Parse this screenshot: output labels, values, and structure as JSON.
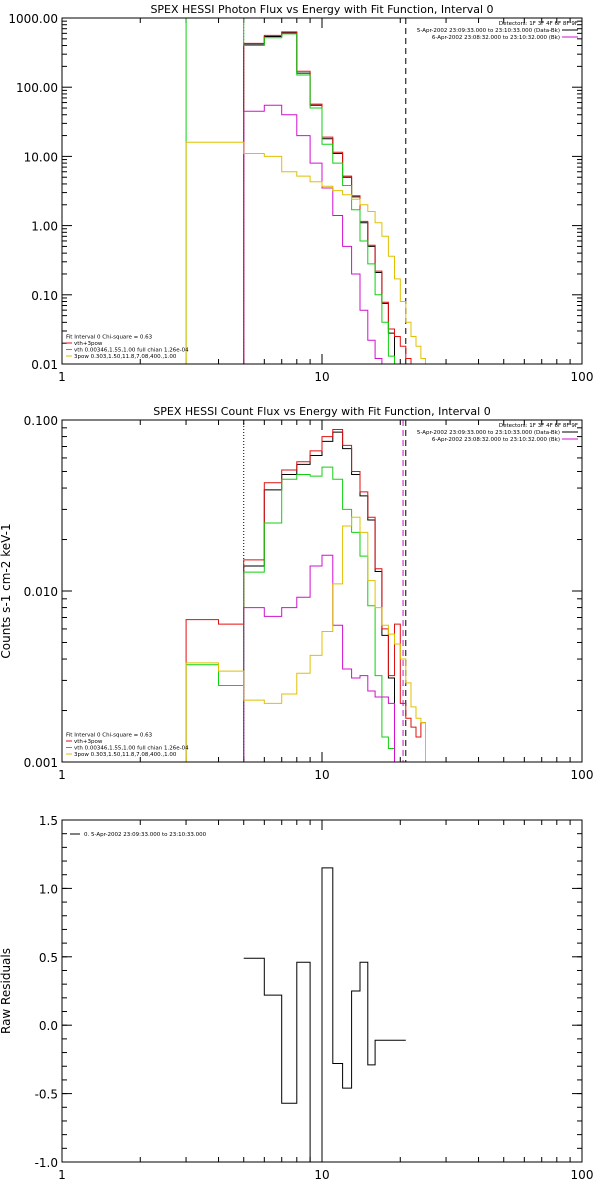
{
  "colors": {
    "background": "#ffffff",
    "axes": "#000000",
    "black": "#000000",
    "red": "#e01010",
    "green": "#10d010",
    "magenta": "#d010d0",
    "yellow": "#e0c000"
  },
  "chart_data": [
    {
      "type": "line",
      "step": true,
      "title": "SPEX HESSI Photon Flux vs Energy with Fit Function, Interval 0",
      "xlabel": "",
      "ylabel": "",
      "xscale": "log",
      "yscale": "log",
      "xlim": [
        1,
        100
      ],
      "ylim": [
        0.01,
        1000
      ],
      "x_ticks": [
        "1",
        "10",
        "100"
      ],
      "y_ticks": [
        "1000.00",
        "100.00",
        "10.00",
        "1.00",
        "0.10",
        "0.01"
      ],
      "edges": [
        3,
        4,
        5,
        6,
        7,
        8,
        9,
        10,
        11,
        12,
        13,
        14,
        15,
        16,
        17,
        18,
        19,
        20,
        21,
        22,
        23,
        24,
        25,
        26
      ],
      "vlines": [
        {
          "x": 5,
          "color": "magenta",
          "style": "dotted"
        },
        {
          "x": 21,
          "color": "black",
          "style": "dashed"
        }
      ],
      "legend_top_right": [
        {
          "text": "Detectors: 1F 3F 4F 6F 8F 9F",
          "color": "black"
        },
        {
          "text": "5-Apr-2002 23:09:33.000 to 23:10:33.000 (Data-Bk)",
          "color": "black"
        },
        {
          "text": "6-Apr-2002 23:08:32.000 to 23:10:32.000 (Bk)",
          "color": "magenta"
        }
      ],
      "legend_bottom_left": [
        {
          "text": "Fit Interval 0   Chi-square = 0.63",
          "color": "black"
        },
        {
          "text": "vth+3pow",
          "color": "red"
        },
        {
          "text": "vth 0.00346,1.55,1.00  full chian 1.26e-04",
          "color": "green"
        },
        {
          "text": "3pow 0.303,1.50,11.8,7.08,400.,1.00",
          "color": "yellow"
        }
      ],
      "series": [
        {
          "color": "black",
          "values": [
            null,
            null,
            420,
            540,
            610,
            160,
            55,
            18,
            11,
            5,
            2.6,
            1.1,
            0.5,
            0.21,
            0.075,
            0.028,
            null,
            null,
            null,
            null,
            null,
            null,
            null
          ]
        },
        {
          "color": "red",
          "values": [
            null,
            null,
            430,
            560,
            630,
            170,
            57,
            19,
            11.5,
            5.2,
            2.7,
            1.15,
            0.52,
            0.22,
            0.078,
            0.032,
            0.025,
            0.018,
            0.012,
            null,
            null,
            null,
            null
          ]
        },
        {
          "color": "green",
          "values": [
            1000,
            1000,
            400,
            520,
            590,
            150,
            50,
            15,
            8,
            3.8,
            1.7,
            0.6,
            0.28,
            0.1,
            0.04,
            0.013,
            0.008,
            null,
            null,
            null,
            null,
            null,
            null
          ]
        },
        {
          "color": "magenta",
          "values": [
            null,
            null,
            45,
            55,
            40,
            20,
            8,
            3.5,
            1.4,
            0.5,
            0.2,
            0.06,
            0.022,
            0.012,
            0.008,
            0.005,
            null,
            null,
            null,
            null,
            null,
            null,
            null
          ]
        },
        {
          "color": "yellow",
          "values": [
            16,
            16,
            11,
            10,
            6,
            5.2,
            4.3,
            3.7,
            3.2,
            2.8,
            2.4,
            2.0,
            1.6,
            1.1,
            0.7,
            0.36,
            0.17,
            0.08,
            0.04,
            0.025,
            0.018,
            0.012,
            0.007
          ]
        }
      ]
    },
    {
      "type": "line",
      "step": true,
      "title": "SPEX HESSI Count Flux vs Energy with Fit Function, Interval 0",
      "xlabel": "",
      "ylabel": "Counts s-1 cm-2 keV-1",
      "xscale": "log",
      "yscale": "log",
      "xlim": [
        1,
        100
      ],
      "ylim": [
        0.001,
        0.1
      ],
      "x_ticks": [
        "1",
        "10",
        "100"
      ],
      "y_ticks": [
        "0.100",
        "0.010",
        "0.001"
      ],
      "edges": [
        3,
        4,
        5,
        6,
        7,
        8,
        9,
        10,
        11,
        12,
        13,
        14,
        15,
        16,
        17,
        18,
        19,
        20,
        21,
        22,
        23,
        24,
        25,
        26
      ],
      "vlines": [
        {
          "x": 5,
          "color": "black",
          "style": "dotted"
        },
        {
          "x": 21,
          "color": "black",
          "style": "dashed"
        },
        {
          "x": 20.5,
          "color": "magenta",
          "style": "dashed"
        }
      ],
      "legend_top_right": [
        {
          "text": "Detectors: 1F 3F 4F 6F 8F 9F",
          "color": "black"
        },
        {
          "text": "5-Apr-2002 23:09:33.000 to 23:10:33.000 (Data-Bk)",
          "color": "black"
        },
        {
          "text": "6-Apr-2002 23:08:32.000 to 23:10:32.000 (Bk)",
          "color": "magenta"
        }
      ],
      "legend_bottom_left": [
        {
          "text": "Fit Interval 0   Chi-square = 0.63",
          "color": "black"
        },
        {
          "text": "vth+3pow",
          "color": "red"
        },
        {
          "text": "vth 0.00346,1.55,1.00  full chian 1.26e-04",
          "color": "green"
        },
        {
          "text": "3pow 0.303,1.50,11.8,7.08,400.,1.00",
          "color": "yellow"
        }
      ],
      "series": [
        {
          "color": "black",
          "values": [
            null,
            null,
            0.014,
            0.039,
            0.048,
            0.055,
            0.062,
            0.075,
            0.085,
            0.068,
            0.048,
            0.036,
            0.026,
            0.013,
            0.0055,
            0.0031,
            null,
            null,
            null,
            null,
            null,
            null,
            null
          ]
        },
        {
          "color": "red",
          "values": [
            0.0068,
            0.0064,
            0.0152,
            0.043,
            0.051,
            0.057,
            0.066,
            0.08,
            0.088,
            0.071,
            0.05,
            0.038,
            0.027,
            0.0135,
            0.006,
            0.0032,
            0.0064,
            0.0022,
            0.0018,
            0.0016,
            0.0014,
            0.0017,
            null
          ]
        },
        {
          "color": "green",
          "values": [
            0.0037,
            0.0028,
            0.0129,
            0.025,
            0.045,
            0.048,
            0.047,
            0.053,
            0.045,
            0.03,
            0.022,
            0.016,
            0.0082,
            0.0032,
            0.0014,
            0.0012,
            null,
            null,
            null,
            null,
            null,
            null,
            null
          ]
        },
        {
          "color": "magenta",
          "values": [
            null,
            null,
            0.008,
            0.0071,
            0.008,
            0.0092,
            0.014,
            0.0162,
            0.0063,
            0.0035,
            0.0031,
            0.0032,
            0.0026,
            0.0024,
            0.0024,
            0.0022,
            null,
            null,
            null,
            null,
            null,
            null,
            null
          ]
        },
        {
          "color": "yellow",
          "values": [
            0.0038,
            0.0034,
            0.0023,
            0.0022,
            0.0025,
            0.0033,
            0.0042,
            0.0058,
            0.011,
            0.024,
            0.027,
            0.022,
            0.0115,
            0.008,
            0.0063,
            0.0056,
            0.0049,
            0.004,
            0.0029,
            0.0021,
            0.0018,
            0.0017,
            0.001
          ]
        }
      ]
    },
    {
      "type": "line",
      "step": true,
      "title": "",
      "xlabel": "",
      "ylabel": "Raw Residuals",
      "xscale": "log",
      "yscale": "linear",
      "xlim": [
        1,
        100
      ],
      "ylim": [
        -1.0,
        1.5
      ],
      "x_ticks": [
        "1",
        "10",
        "100"
      ],
      "y_ticks": [
        "1.5",
        "1.0",
        "0.5",
        "0.0",
        "-0.5",
        "-1.0"
      ],
      "edges": [
        5,
        6,
        7,
        8,
        9,
        10,
        11,
        12,
        13,
        14,
        15,
        16,
        17,
        18,
        19,
        20,
        21
      ],
      "legend_top_left": [
        {
          "text": "0. 5-Apr-2002 23:09:33.000 to 23:10:33.000",
          "color": "black"
        }
      ],
      "series": [
        {
          "color": "black",
          "values": [
            0.49,
            0.22,
            -0.57,
            0.46,
            -1.0,
            1.15,
            -0.28,
            -0.46,
            0.25,
            0.46,
            -0.29,
            -0.11,
            -0.11,
            -0.11,
            -0.11,
            -0.11
          ]
        }
      ]
    }
  ]
}
